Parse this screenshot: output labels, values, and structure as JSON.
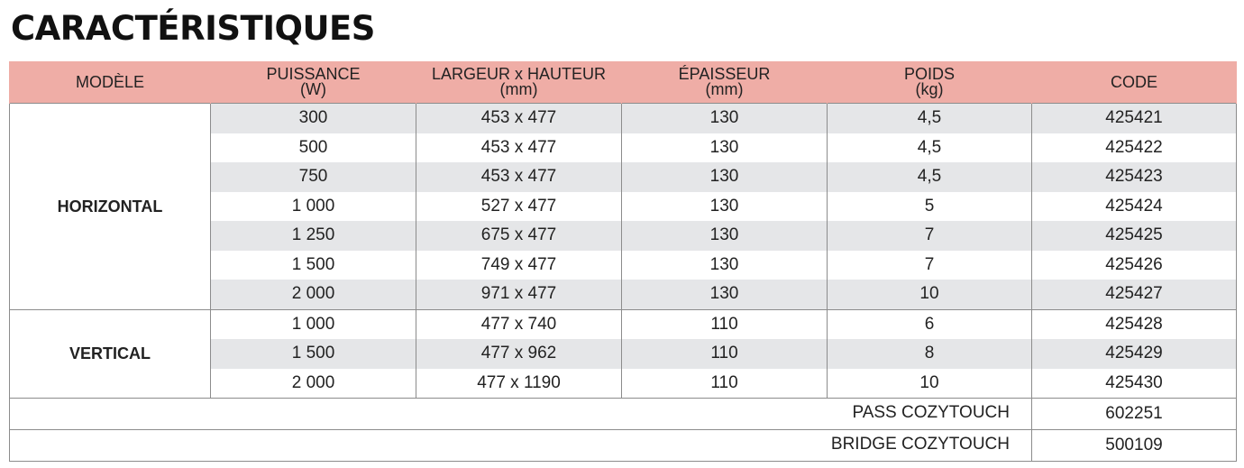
{
  "page": {
    "title": "CARACTÉRISTIQUES"
  },
  "table": {
    "headers": [
      {
        "key": "modele",
        "line1": "MODÈLE",
        "line2": ""
      },
      {
        "key": "puissance",
        "line1": "PUISSANCE",
        "line2": "(W)"
      },
      {
        "key": "dimensions",
        "line1": "LARGEUR x HAUTEUR",
        "line2": "(mm)"
      },
      {
        "key": "epaisseur",
        "line1": "ÉPAISSEUR",
        "line2": "(mm)"
      },
      {
        "key": "poids",
        "line1": "POIDS",
        "line2": "(kg)"
      },
      {
        "key": "code",
        "line1": "CODE",
        "line2": ""
      }
    ],
    "groups": [
      {
        "model": "HORIZONTAL",
        "rows": [
          {
            "puissance": "300",
            "dimensions": "453 x 477",
            "epaisseur": "130",
            "poids": "4,5",
            "code": "425421"
          },
          {
            "puissance": "500",
            "dimensions": "453 x 477",
            "epaisseur": "130",
            "poids": "4,5",
            "code": "425422"
          },
          {
            "puissance": "750",
            "dimensions": "453 x 477",
            "epaisseur": "130",
            "poids": "4,5",
            "code": "425423"
          },
          {
            "puissance": "1 000",
            "dimensions": "527 x 477",
            "epaisseur": "130",
            "poids": "5",
            "code": "425424"
          },
          {
            "puissance": "1 250",
            "dimensions": "675 x 477",
            "epaisseur": "130",
            "poids": "7",
            "code": "425425"
          },
          {
            "puissance": "1 500",
            "dimensions": "749 x 477",
            "epaisseur": "130",
            "poids": "7",
            "code": "425426"
          },
          {
            "puissance": "2 000",
            "dimensions": "971 x 477",
            "epaisseur": "130",
            "poids": "10",
            "code": "425427"
          }
        ]
      },
      {
        "model": "VERTICAL",
        "rows": [
          {
            "puissance": "1 000",
            "dimensions": "477 x 740",
            "epaisseur": "110",
            "poids": "6",
            "code": "425428"
          },
          {
            "puissance": "1 500",
            "dimensions": "477 x 962",
            "epaisseur": "110",
            "poids": "8",
            "code": "425429"
          },
          {
            "puissance": "2 000",
            "dimensions": "477 x 1190",
            "epaisseur": "110",
            "poids": "10",
            "code": "425430"
          }
        ]
      }
    ],
    "accessories": [
      {
        "label": "PASS COZYTOUCH",
        "code": "602251"
      },
      {
        "label": "BRIDGE COZYTOUCH",
        "code": "500109"
      }
    ]
  },
  "colors": {
    "header_bg": "#efada6",
    "row_shade": "#e5e6e8",
    "border": "#8c8c8c"
  }
}
